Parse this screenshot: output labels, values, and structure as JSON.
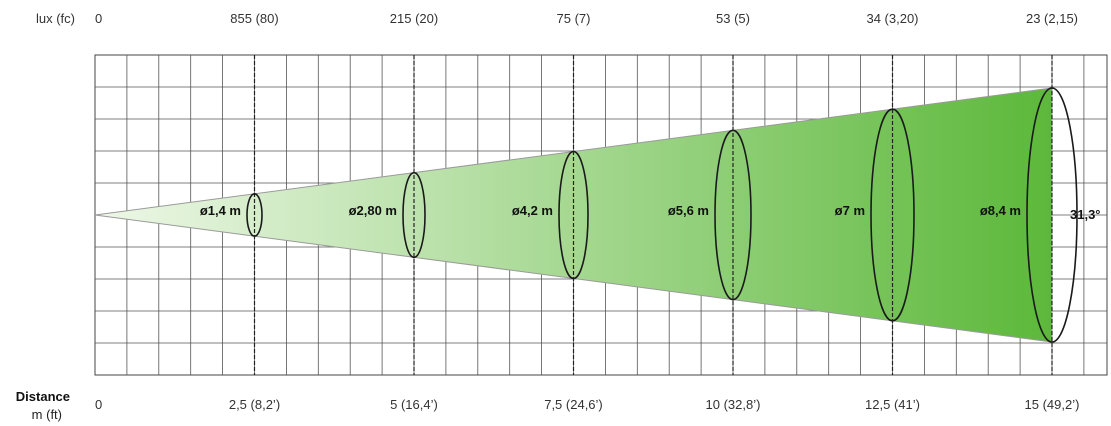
{
  "header": {
    "lux_label": "lux (fc)"
  },
  "footer": {
    "distance_label": "Distance",
    "unit_label": "m (ft)"
  },
  "beam": {
    "angle_label": "31,3°",
    "fill_start": "#eef8e8",
    "fill_end": "#5cb83a"
  },
  "stations": [
    {
      "lux": "0",
      "distance": "0",
      "diameter": ""
    },
    {
      "lux": "855 (80)",
      "distance": "2,5  (8,2’)",
      "diameter": "ø1,4 m"
    },
    {
      "lux": "215 (20)",
      "distance": "5  (16,4’)",
      "diameter": "ø2,80 m"
    },
    {
      "lux": "75 (7)",
      "distance": "7,5 (24,6’)",
      "diameter": "ø4,2 m"
    },
    {
      "lux": "53 (5)",
      "distance": "10  (32,8’)",
      "diameter": "ø5,6 m"
    },
    {
      "lux": "34 (3,20)",
      "distance": "12,5 (41’)",
      "diameter": "ø7 m"
    },
    {
      "lux": "23 (2,15)",
      "distance": "15 (49,2’)",
      "diameter": "ø8,4 m"
    }
  ]
}
